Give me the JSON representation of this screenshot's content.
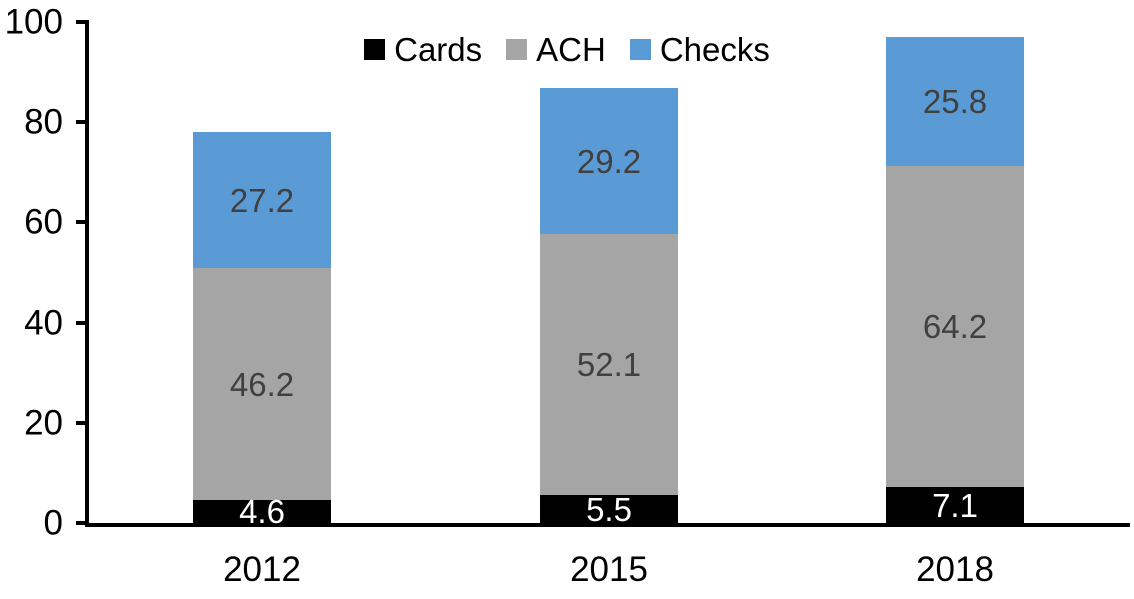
{
  "chart_data": {
    "type": "bar",
    "stacked": true,
    "title": "",
    "xlabel": "",
    "ylabel": "",
    "categories": [
      "2012",
      "2015",
      "2018"
    ],
    "series": [
      {
        "name": "Cards",
        "color": "#000000",
        "label_color": "#ffffff",
        "values": [
          4.6,
          5.5,
          7.1
        ]
      },
      {
        "name": "ACH",
        "color": "#a5a5a5",
        "label_color": "#404040",
        "values": [
          46.2,
          52.1,
          64.2
        ]
      },
      {
        "name": "Checks",
        "color": "#5b9bd5",
        "label_color": "#404040",
        "values": [
          27.2,
          29.2,
          25.8
        ]
      }
    ],
    "totals": [
      78.0,
      86.8,
      97.1
    ],
    "ylim": [
      0,
      100
    ],
    "yticks": [
      0,
      20,
      40,
      60,
      80,
      100
    ],
    "grid": false,
    "legend_position": "top-center",
    "axis_color": "#000000",
    "background": "#ffffff"
  }
}
